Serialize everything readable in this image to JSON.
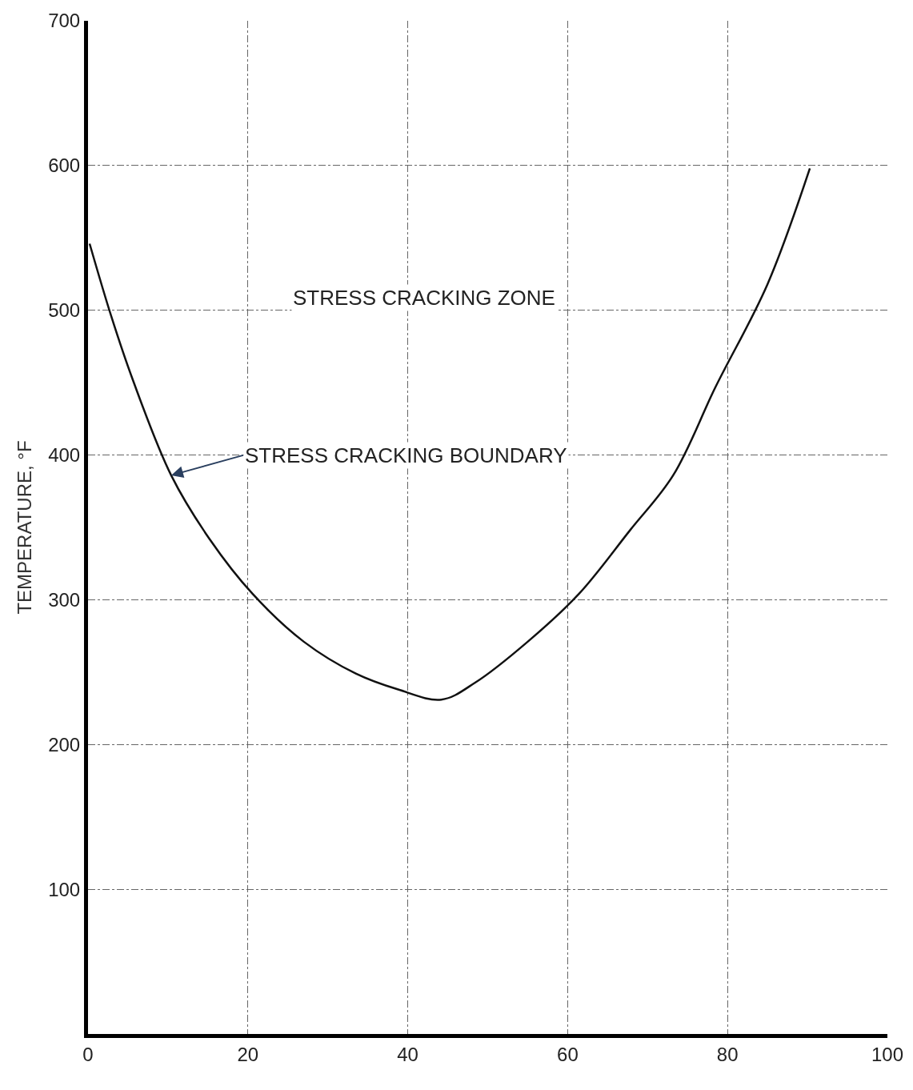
{
  "chart_data": {
    "type": "line",
    "ylabel": "TEMPERATURE, °F",
    "series": [
      {
        "color": "#111111",
        "x": [
          0.2,
          2.9,
          5.6,
          10.4,
          15.2,
          20.6,
          27,
          33.5,
          38.8,
          44.2,
          48.5,
          55,
          61.4,
          67.8,
          73.2,
          78.5,
          85,
          90.3
        ],
        "values": [
          546,
          496,
          452,
          386,
          342,
          304,
          271,
          249,
          238,
          231,
          243,
          271,
          304,
          348,
          386,
          447,
          518,
          598
        ]
      }
    ],
    "xlim": [
      0,
      100
    ],
    "xticks": [
      0,
      20,
      40,
      60,
      80,
      100
    ],
    "ylim": [
      0,
      700
    ],
    "yticks": [
      100,
      200,
      300,
      400,
      500,
      600,
      700
    ],
    "grid": true,
    "line_style": "solid",
    "marker": "none",
    "annotations": [
      "STRESS CRACKING ZONE",
      {
        "text": "STRESS CRACKING BOUNDARY",
        "x": 10.4,
        "y": 386
      }
    ]
  }
}
